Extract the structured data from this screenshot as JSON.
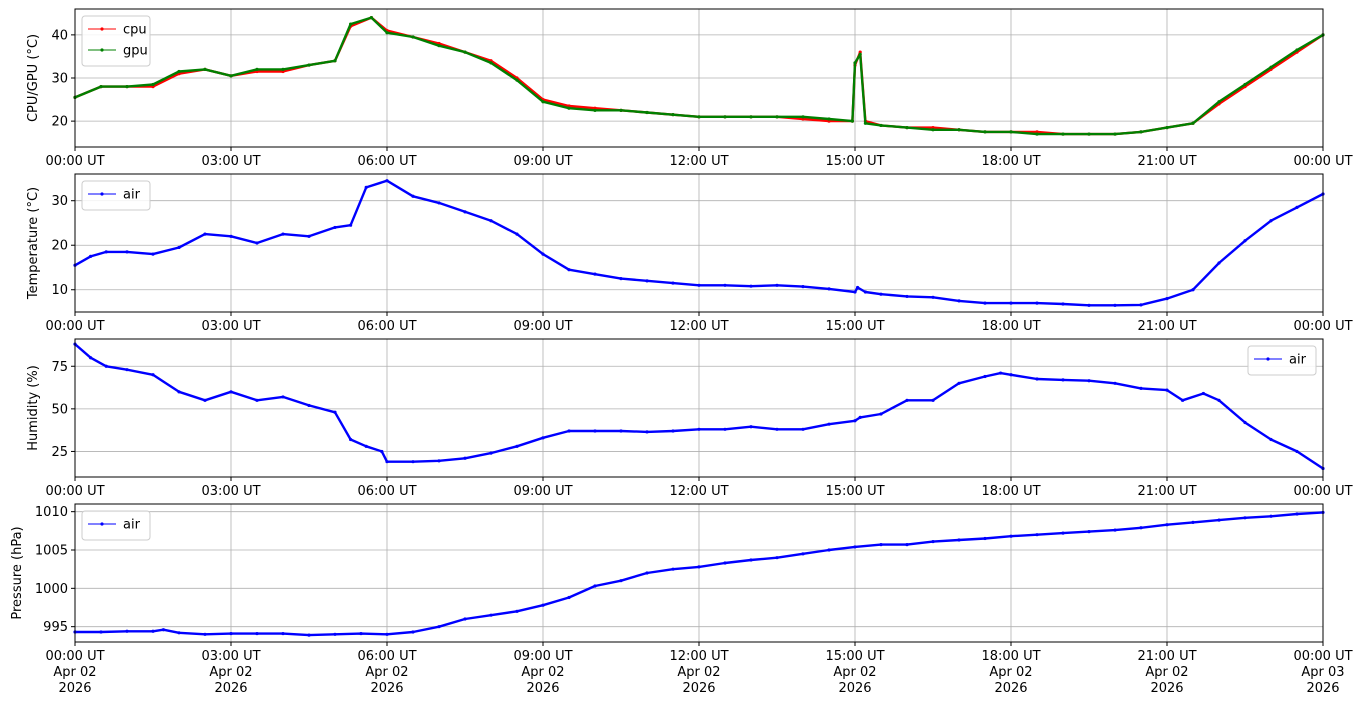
{
  "chart_data": [
    {
      "type": "line",
      "ylabel": "CPU/GPU (°C)",
      "ylim": [
        14,
        46
      ],
      "yticks": [
        20,
        30,
        40
      ],
      "xlim": [
        0,
        24
      ],
      "xticklabels": [
        "00:00 UT",
        "03:00 UT",
        "06:00 UT",
        "09:00 UT",
        "12:00 UT",
        "15:00 UT",
        "18:00 UT",
        "21:00 UT",
        "00:00 UT"
      ],
      "grid": true,
      "legend_position": "top-left",
      "series": [
        {
          "name": "cpu",
          "color": "#ff0000",
          "x": [
            0,
            0.5,
            1.0,
            1.5,
            2.0,
            2.5,
            3.0,
            3.5,
            4.0,
            4.5,
            5.0,
            5.3,
            5.7,
            6.0,
            6.5,
            7.0,
            7.5,
            8.0,
            8.5,
            9.0,
            9.5,
            10.0,
            10.5,
            11.0,
            11.5,
            12.0,
            12.5,
            13.0,
            13.5,
            14.0,
            14.5,
            14.95,
            15.0,
            15.1,
            15.2,
            15.5,
            16.0,
            16.5,
            17.0,
            17.5,
            18.0,
            18.5,
            19.0,
            19.5,
            20.0,
            20.5,
            21.0,
            21.5,
            22.0,
            22.5,
            23.0,
            23.5,
            24.0
          ],
          "y": [
            25.5,
            28,
            28,
            28,
            31,
            32,
            30.5,
            31.5,
            31.5,
            33,
            34,
            42,
            44,
            41,
            39.5,
            38,
            36,
            34,
            30,
            25,
            23.5,
            23,
            22.5,
            22,
            21.5,
            21,
            21,
            21,
            21,
            20.5,
            20,
            20,
            33,
            36,
            20,
            19,
            18.5,
            18.5,
            18,
            17.5,
            17.5,
            17.5,
            17,
            17,
            17,
            17.5,
            18.5,
            19.5,
            24,
            28,
            32,
            36,
            40
          ]
        },
        {
          "name": "gpu",
          "color": "#008000",
          "x": [
            0,
            0.5,
            1.0,
            1.5,
            2.0,
            2.5,
            3.0,
            3.5,
            4.0,
            4.5,
            5.0,
            5.3,
            5.7,
            6.0,
            6.5,
            7.0,
            7.5,
            8.0,
            8.5,
            9.0,
            9.5,
            10.0,
            10.5,
            11.0,
            11.5,
            12.0,
            12.5,
            13.0,
            13.5,
            14.0,
            14.5,
            14.95,
            15.0,
            15.1,
            15.2,
            15.5,
            16.0,
            16.5,
            17.0,
            17.5,
            18.0,
            18.5,
            19.0,
            19.5,
            20.0,
            20.5,
            21.0,
            21.5,
            22.0,
            22.5,
            23.0,
            23.5,
            24.0
          ],
          "y": [
            25.5,
            28,
            28,
            28.5,
            31.5,
            32,
            30.5,
            32,
            32,
            33,
            34,
            42.5,
            44,
            40.5,
            39.5,
            37.5,
            36,
            33.5,
            29.5,
            24.5,
            23,
            22.5,
            22.5,
            22,
            21.5,
            21,
            21,
            21,
            21,
            21,
            20.5,
            20,
            33.5,
            35.5,
            19.5,
            19,
            18.5,
            18,
            18,
            17.5,
            17.5,
            17,
            17,
            17,
            17,
            17.5,
            18.5,
            19.5,
            24.5,
            28.5,
            32.5,
            36.5,
            40
          ]
        }
      ]
    },
    {
      "type": "line",
      "ylabel": "Temperature (°C)",
      "ylim": [
        5,
        36
      ],
      "yticks": [
        10,
        20,
        30
      ],
      "xlim": [
        0,
        24
      ],
      "xticklabels": [
        "00:00 UT",
        "03:00 UT",
        "06:00 UT",
        "09:00 UT",
        "12:00 UT",
        "15:00 UT",
        "18:00 UT",
        "21:00 UT",
        "00:00 UT"
      ],
      "grid": true,
      "legend_position": "top-left",
      "series": [
        {
          "name": "air",
          "color": "#0000ff",
          "x": [
            0,
            0.3,
            0.6,
            1.0,
            1.5,
            2.0,
            2.5,
            3.0,
            3.5,
            4.0,
            4.5,
            5.0,
            5.3,
            5.6,
            6.0,
            6.5,
            7.0,
            7.5,
            8.0,
            8.5,
            9.0,
            9.5,
            10.0,
            10.5,
            11.0,
            11.5,
            12.0,
            12.5,
            13.0,
            13.5,
            14.0,
            14.5,
            15.0,
            15.05,
            15.2,
            15.5,
            16.0,
            16.5,
            17.0,
            17.5,
            18.0,
            18.5,
            19.0,
            19.5,
            20.0,
            20.5,
            21.0,
            21.5,
            22.0,
            22.5,
            23.0,
            23.5,
            24.0
          ],
          "y": [
            15.5,
            17.5,
            18.5,
            18.5,
            18,
            19.5,
            22.5,
            22,
            20.5,
            22.5,
            22,
            24,
            24.5,
            33,
            34.5,
            31,
            29.5,
            27.5,
            25.5,
            22.5,
            18,
            14.5,
            13.5,
            12.5,
            12,
            11.5,
            11,
            11,
            10.8,
            11,
            10.7,
            10.2,
            9.5,
            10.5,
            9.5,
            9,
            8.5,
            8.3,
            7.5,
            7,
            7,
            7,
            6.8,
            6.5,
            6.5,
            6.6,
            8,
            10,
            16,
            21,
            25.5,
            28.5,
            31.5
          ]
        }
      ]
    },
    {
      "type": "line",
      "ylabel": "Humidity (%)",
      "ylim": [
        10,
        91
      ],
      "yticks": [
        25,
        50,
        75
      ],
      "xlim": [
        0,
        24
      ],
      "xticklabels": [
        "00:00 UT",
        "03:00 UT",
        "06:00 UT",
        "09:00 UT",
        "12:00 UT",
        "15:00 UT",
        "18:00 UT",
        "21:00 UT",
        "00:00 UT"
      ],
      "grid": true,
      "legend_position": "top-right",
      "series": [
        {
          "name": "air",
          "color": "#0000ff",
          "x": [
            0,
            0.3,
            0.6,
            1.0,
            1.5,
            2.0,
            2.5,
            3.0,
            3.5,
            4.0,
            4.5,
            5.0,
            5.3,
            5.6,
            5.9,
            6.0,
            6.5,
            7.0,
            7.5,
            8.0,
            8.5,
            9.0,
            9.5,
            10.0,
            10.5,
            11.0,
            11.5,
            12.0,
            12.5,
            13.0,
            13.5,
            14.0,
            14.5,
            15.0,
            15.1,
            15.5,
            16.0,
            16.5,
            17.0,
            17.5,
            17.8,
            18.0,
            18.5,
            19.0,
            19.5,
            20.0,
            20.5,
            21.0,
            21.3,
            21.7,
            22.0,
            22.5,
            23.0,
            23.5,
            24.0
          ],
          "y": [
            88,
            80,
            75,
            73,
            70,
            60,
            55,
            60,
            55,
            57,
            52,
            48,
            32,
            28,
            25,
            19,
            19,
            19.5,
            21,
            24,
            28,
            33,
            37,
            37,
            37,
            36.5,
            37,
            38,
            38,
            39.5,
            38,
            38,
            41,
            43,
            45,
            47,
            55,
            55,
            65,
            69,
            71,
            70,
            67.5,
            67,
            66.5,
            65,
            62,
            61,
            55,
            59,
            55,
            42,
            32,
            25,
            15
          ]
        }
      ]
    },
    {
      "type": "line",
      "ylabel": "Pressure (hPa)",
      "ylim": [
        993,
        1011
      ],
      "yticks": [
        995,
        1000,
        1005,
        1010
      ],
      "xlim": [
        0,
        24
      ],
      "xticklabels": [
        "00:00 UT\nApr 02\n2026",
        "03:00 UT\nApr 02\n2026",
        "06:00 UT\nApr 02\n2026",
        "09:00 UT\nApr 02\n2026",
        "12:00 UT\nApr 02\n2026",
        "15:00 UT\nApr 02\n2026",
        "18:00 UT\nApr 02\n2026",
        "21:00 UT\nApr 02\n2026",
        "00:00 UT\nApr 03\n2026"
      ],
      "grid": true,
      "legend_position": "top-left",
      "series": [
        {
          "name": "air",
          "color": "#0000ff",
          "x": [
            0,
            0.5,
            1.0,
            1.5,
            1.7,
            2.0,
            2.5,
            3.0,
            3.5,
            4.0,
            4.5,
            5.0,
            5.5,
            6.0,
            6.5,
            7.0,
            7.5,
            8.0,
            8.5,
            9.0,
            9.5,
            10.0,
            10.5,
            11.0,
            11.5,
            12.0,
            12.5,
            13.0,
            13.5,
            14.0,
            14.5,
            15.0,
            15.5,
            16.0,
            16.5,
            17.0,
            17.5,
            18.0,
            18.5,
            19.0,
            19.5,
            20.0,
            20.5,
            21.0,
            21.5,
            22.0,
            22.5,
            23.0,
            23.5,
            24.0
          ],
          "y": [
            994.3,
            994.3,
            994.4,
            994.4,
            994.6,
            994.2,
            994.0,
            994.1,
            994.1,
            994.1,
            993.9,
            994.0,
            994.1,
            994.0,
            994.3,
            995.0,
            996.0,
            996.5,
            997.0,
            997.8,
            998.8,
            1000.3,
            1001.0,
            1002.0,
            1002.5,
            1002.8,
            1003.3,
            1003.7,
            1004.0,
            1004.5,
            1005.0,
            1005.4,
            1005.7,
            1005.7,
            1006.1,
            1006.3,
            1006.5,
            1006.8,
            1007.0,
            1007.2,
            1007.4,
            1007.6,
            1007.9,
            1008.3,
            1008.6,
            1008.9,
            1009.2,
            1009.4,
            1009.7,
            1009.9
          ]
        }
      ]
    }
  ]
}
